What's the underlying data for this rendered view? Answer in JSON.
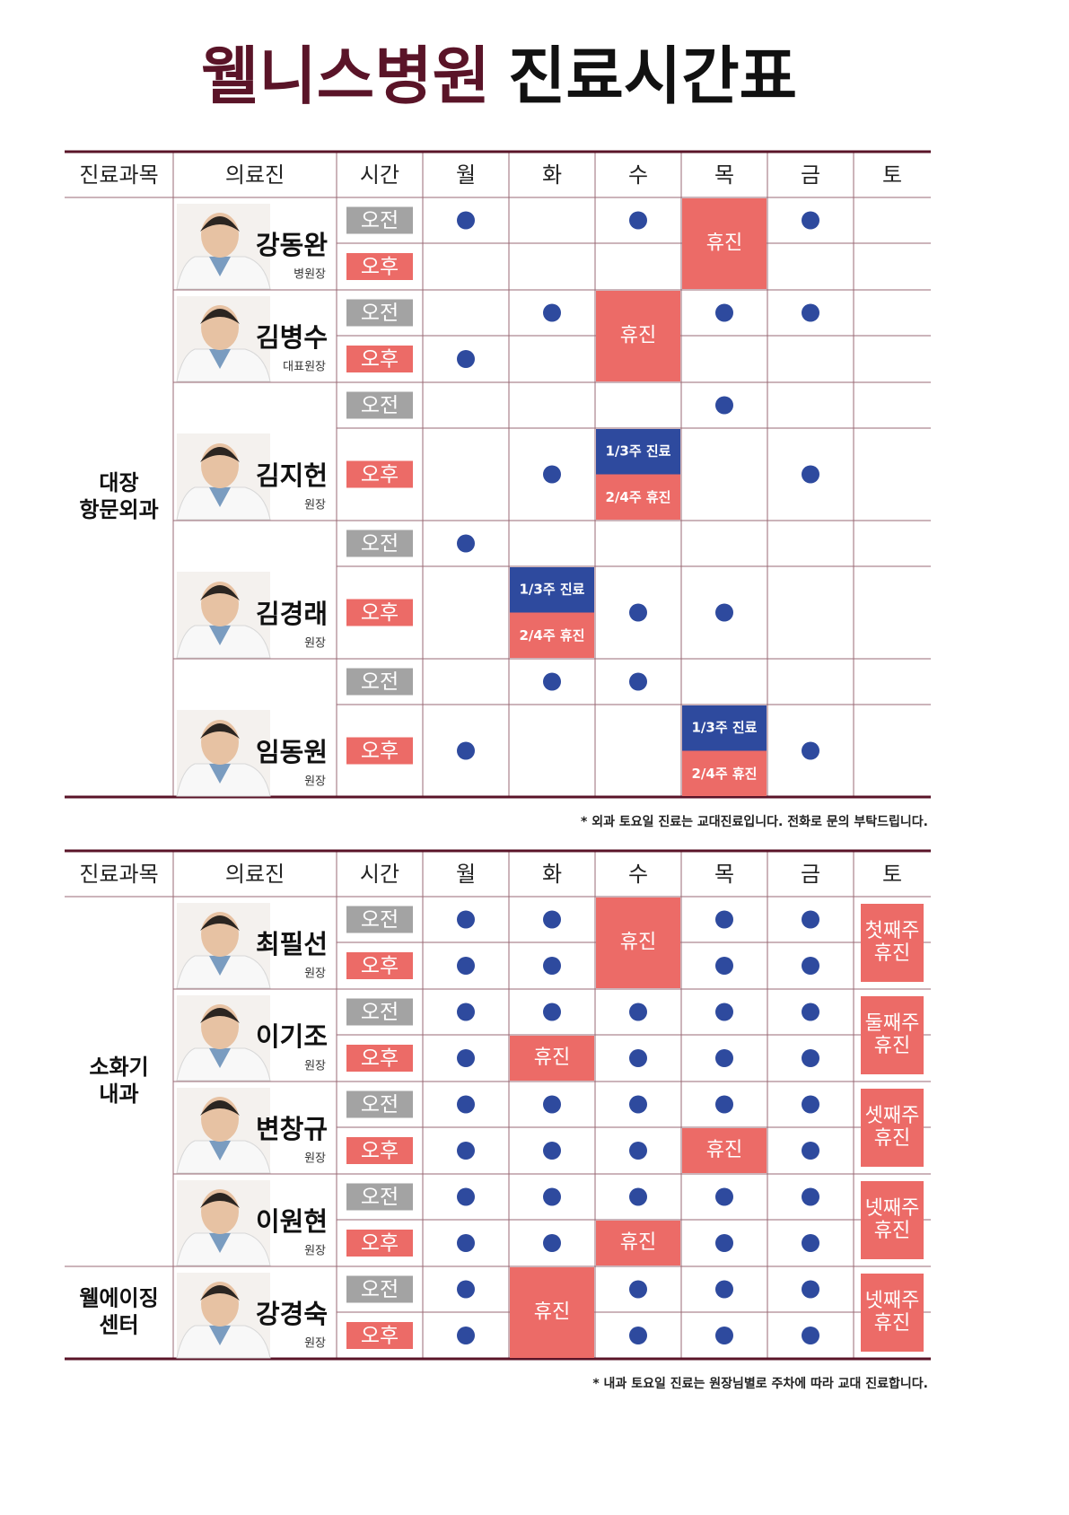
{
  "title": {
    "brand": "웰니스병원",
    "rest": "진료시간표"
  },
  "tables": [
    {
      "headers": [
        "진료과목",
        "의료진",
        "시간",
        "월",
        "화",
        "수",
        "목",
        "금",
        "토"
      ],
      "departments": [
        {
          "name": "대장\n항문외과",
          "doctors": [
            {
              "name": "강동완",
              "role": "병원장",
              "sessions": [
                "오전",
                "오후"
              ],
              "days": [
                {
                  "am": true
                },
                {},
                {
                  "am": true
                },
                {
                  "all": "휴진"
                },
                {
                  "am": true
                },
                {}
              ]
            },
            {
              "name": "김병수",
              "role": "대표원장",
              "sessions": [
                "오전",
                "오후"
              ],
              "days": [
                {
                  "pm": true
                },
                {
                  "am": true
                },
                {
                  "all": "휴진"
                },
                {
                  "am": true
                },
                {
                  "am": true
                },
                {}
              ]
            },
            {
              "name": "김지헌",
              "role": "원장",
              "sessions": [
                "오전",
                "오후"
              ],
              "days": [
                {},
                {
                  "pm": true
                },
                {
                  "pm": [
                    "1/3주 진료",
                    "2/4주 휴진"
                  ]
                },
                {
                  "am": true
                },
                {
                  "pm": true
                },
                {}
              ]
            },
            {
              "name": "김경래",
              "role": "원장",
              "sessions": [
                "오전",
                "오후"
              ],
              "days": [
                {
                  "am": true
                },
                {
                  "pm": [
                    "1/3주 진료",
                    "2/4주 휴진"
                  ]
                },
                {
                  "pm": true
                },
                {
                  "pm": true
                },
                {},
                {}
              ]
            },
            {
              "name": "임동원",
              "role": "원장",
              "sessions": [
                "오전",
                "오후"
              ],
              "days": [
                {
                  "pm": true
                },
                {
                  "am": true
                },
                {
                  "am": true
                },
                {
                  "pm": [
                    "1/3주 진료",
                    "2/4주 휴진"
                  ]
                },
                {
                  "pm": true
                },
                {}
              ]
            }
          ]
        }
      ],
      "note": "* 외과 토요일 진료는 교대진료입니다. 전화로 문의 부탁드립니다."
    },
    {
      "headers": [
        "진료과목",
        "의료진",
        "시간",
        "월",
        "화",
        "수",
        "목",
        "금",
        "토"
      ],
      "departments": [
        {
          "name": "소화기\n내과",
          "doctors": [
            {
              "name": "최필선",
              "role": "원장",
              "sessions": [
                "오전",
                "오후"
              ],
              "days": [
                {
                  "am": true,
                  "pm": true
                },
                {
                  "am": true,
                  "pm": true
                },
                {
                  "all": "휴진"
                },
                {
                  "am": true,
                  "pm": true
                },
                {
                  "am": true,
                  "pm": true
                },
                {
                  "all": "첫째주\n휴진"
                }
              ]
            },
            {
              "name": "이기조",
              "role": "원장",
              "sessions": [
                "오전",
                "오후"
              ],
              "days": [
                {
                  "am": true,
                  "pm": true
                },
                {
                  "am": true,
                  "pm": "휴진"
                },
                {
                  "am": true,
                  "pm": true
                },
                {
                  "am": true,
                  "pm": true
                },
                {
                  "am": true,
                  "pm": true
                },
                {
                  "all": "둘째주\n휴진"
                }
              ]
            },
            {
              "name": "변창규",
              "role": "원장",
              "sessions": [
                "오전",
                "오후"
              ],
              "days": [
                {
                  "am": true,
                  "pm": true
                },
                {
                  "am": true,
                  "pm": true
                },
                {
                  "am": true,
                  "pm": true
                },
                {
                  "am": true,
                  "pm": "휴진"
                },
                {
                  "am": true,
                  "pm": true
                },
                {
                  "all": "셋째주\n휴진"
                }
              ]
            },
            {
              "name": "이원현",
              "role": "원장",
              "sessions": [
                "오전",
                "오후"
              ],
              "days": [
                {
                  "am": true,
                  "pm": true
                },
                {
                  "am": true,
                  "pm": true
                },
                {
                  "am": true,
                  "pm": "휴진"
                },
                {
                  "am": true,
                  "pm": true
                },
                {
                  "am": true,
                  "pm": true
                },
                {
                  "all": "넷째주\n휴진"
                }
              ]
            }
          ]
        },
        {
          "name": "웰에이징\n센터",
          "doctors": [
            {
              "name": "강경숙",
              "role": "원장",
              "sessions": [
                "오전",
                "오후"
              ],
              "days": [
                {
                  "am": true,
                  "pm": true
                },
                {
                  "all": "휴진"
                },
                {
                  "am": true,
                  "pm": true
                },
                {
                  "am": true,
                  "pm": true
                },
                {
                  "am": true,
                  "pm": true
                },
                {
                  "all": "넷째주\n휴진"
                }
              ]
            }
          ]
        }
      ],
      "note": "* 내과 토요일 진료는 원장님별로 주차에 따라 교대 진료합니다."
    }
  ]
}
